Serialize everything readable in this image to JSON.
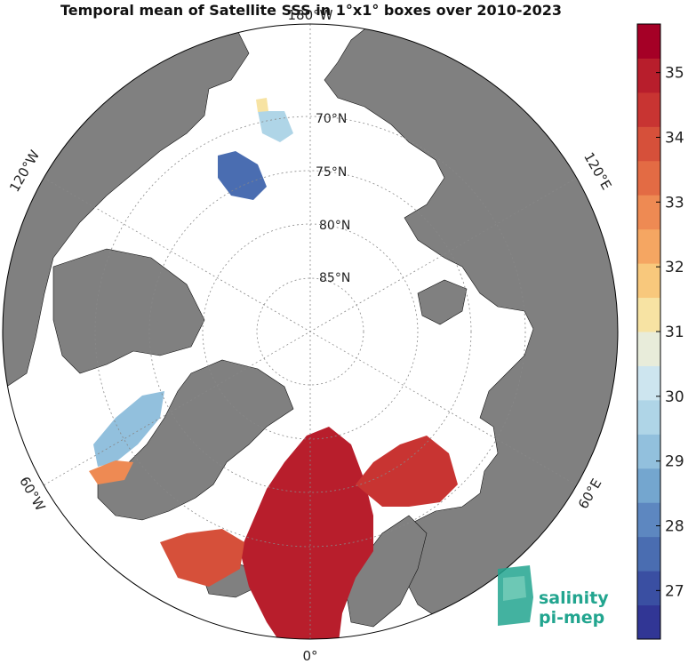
{
  "title": "Temporal mean of Satellite SSS in 1°x1° boxes over 2010-2023",
  "colorbar": {
    "ticks": [
      "27",
      "28",
      "29",
      "30",
      "31",
      "32",
      "33",
      "34",
      "35"
    ],
    "min": 26.25,
    "max": 35.75,
    "colors": [
      "#313695",
      "#3a4fa2",
      "#4a6db1",
      "#5d87c0",
      "#74a6cf",
      "#92c0dd",
      "#afd5e7",
      "#cde5ef",
      "#e8ecda",
      "#f7e3a3",
      "#f8c87c",
      "#f5a662",
      "#ee8a53",
      "#e36b44",
      "#d6503a",
      "#c83432",
      "#b81e2c",
      "#a50026"
    ]
  },
  "lat_labels": [
    "70°N",
    "75°N",
    "80°N",
    "85°N"
  ],
  "lon_labels": {
    "top": "180°W",
    "left_upper": "120°W",
    "right_upper": "120°E",
    "left_lower": "60°W",
    "right_lower": "60°E",
    "bottom": "0°"
  },
  "logo": {
    "line1": "salinity",
    "line2": "pi-mep"
  },
  "colors": {
    "land": "#808080",
    "ocean": "#ffffff",
    "border": "#000000"
  }
}
